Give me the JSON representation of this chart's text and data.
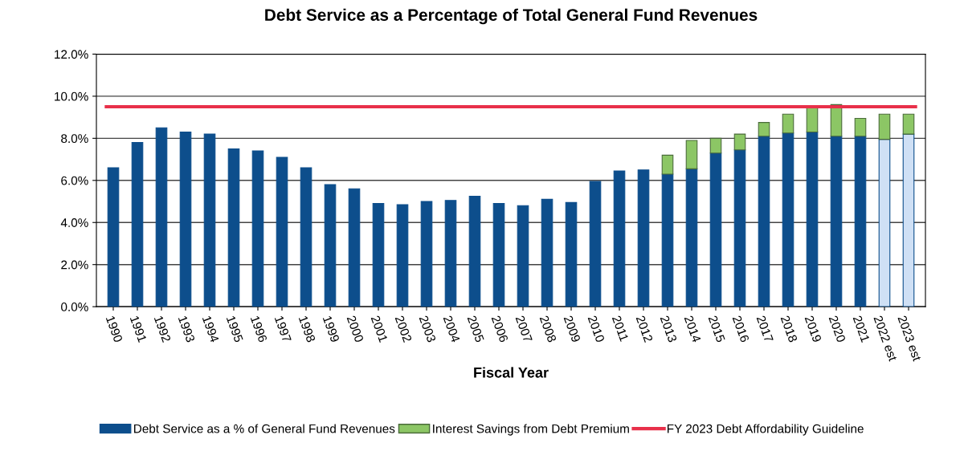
{
  "chart_data": {
    "type": "bar",
    "title": "Debt Service as a Percentage of Total General Fund Revenues",
    "xlabel": "Fiscal Year",
    "categories": [
      "1990",
      "1991",
      "1992",
      "1993",
      "1994",
      "1995",
      "1996",
      "1997",
      "1998",
      "1999",
      "2000",
      "2001",
      "2002",
      "2003",
      "2004",
      "2005",
      "2006",
      "2007",
      "2008",
      "2009",
      "2010",
      "2011",
      "2012",
      "2013",
      "2014",
      "2015",
      "2016",
      "2017",
      "2018",
      "2019",
      "2020",
      "2021",
      "2022 est",
      "2023 est"
    ],
    "stacked": true,
    "series": [
      {
        "name": "Debt Service as a % of General Fund Revenues",
        "color": "#0d4e8c",
        "colors": [
          "#0d4e8c",
          "#0d4e8c",
          "#0d4e8c",
          "#0d4e8c",
          "#0d4e8c",
          "#0d4e8c",
          "#0d4e8c",
          "#0d4e8c",
          "#0d4e8c",
          "#0d4e8c",
          "#0d4e8c",
          "#0d4e8c",
          "#0d4e8c",
          "#0d4e8c",
          "#0d4e8c",
          "#0d4e8c",
          "#0d4e8c",
          "#0d4e8c",
          "#0d4e8c",
          "#0d4e8c",
          "#0d4e8c",
          "#0d4e8c",
          "#0d4e8c",
          "#0d4e8c",
          "#0d4e8c",
          "#0d4e8c",
          "#0d4e8c",
          "#0d4e8c",
          "#0d4e8c",
          "#0d4e8c",
          "#0d4e8c",
          "#0d4e8c",
          "#cfe0f5",
          "#cfe0f5"
        ],
        "values": [
          6.6,
          7.8,
          8.5,
          8.3,
          8.2,
          7.5,
          7.4,
          7.1,
          6.6,
          5.8,
          5.6,
          4.9,
          4.85,
          5.0,
          5.05,
          5.25,
          4.9,
          4.8,
          5.1,
          4.95,
          5.95,
          6.45,
          6.5,
          6.3,
          6.55,
          7.3,
          7.45,
          8.1,
          8.25,
          8.3,
          8.1,
          8.1,
          7.95,
          8.2
        ]
      },
      {
        "name": "Interest Savings from Debt Premium",
        "color": "#8cc665",
        "values": [
          null,
          null,
          null,
          null,
          null,
          null,
          null,
          null,
          null,
          null,
          null,
          null,
          null,
          null,
          null,
          null,
          null,
          null,
          null,
          null,
          null,
          null,
          null,
          0.9,
          1.35,
          0.7,
          0.75,
          0.65,
          0.9,
          1.15,
          1.5,
          0.85,
          1.2,
          0.95
        ]
      }
    ],
    "ref_lines": [
      {
        "axis": "y",
        "value": 9.5,
        "label": "FY 2023 Debt Affordability Guideline",
        "color": "#e8304a"
      }
    ],
    "ylim": [
      0,
      12
    ],
    "yticks": [
      {
        "value": 0,
        "label": "0.0%"
      },
      {
        "value": 2,
        "label": "2.0%"
      },
      {
        "value": 4,
        "label": "4.0%"
      },
      {
        "value": 6,
        "label": "6.0%"
      },
      {
        "value": 8,
        "label": "8.0%"
      },
      {
        "value": 10,
        "label": "10.0%"
      },
      {
        "value": 12,
        "label": "12.0%"
      }
    ],
    "grid": "y",
    "legend": "bottom"
  }
}
